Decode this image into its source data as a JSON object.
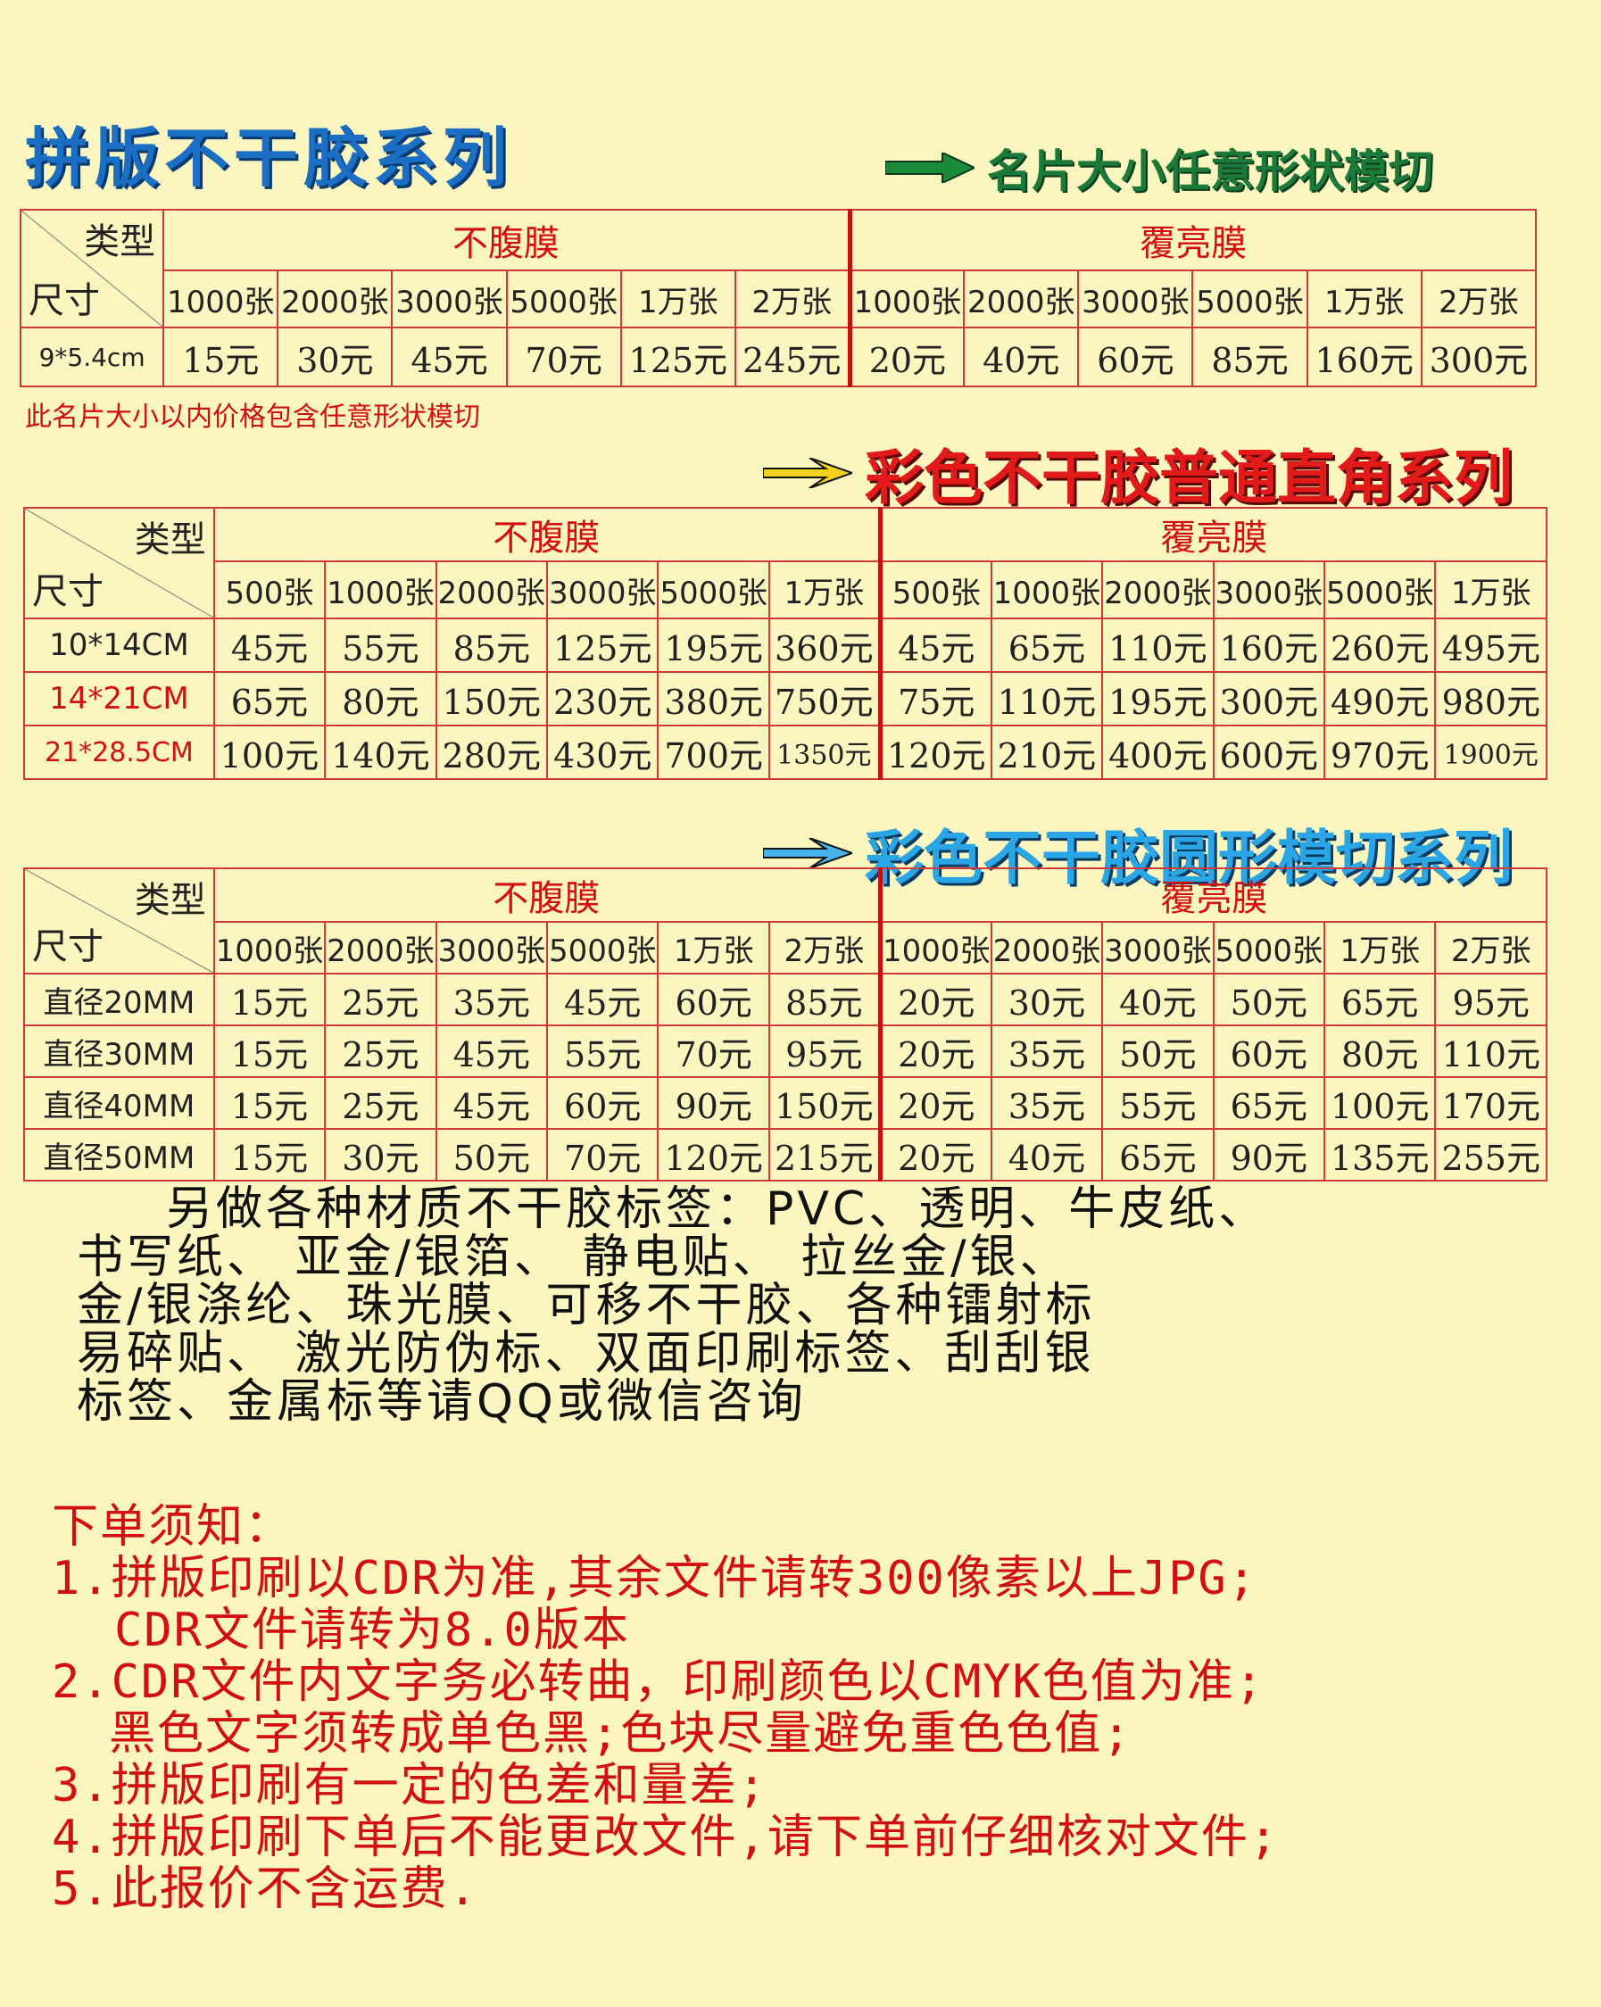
{
  "title": "拼版不干胶系列",
  "sections": {
    "s1": "名片大小任意形状模切",
    "s2": "彩色不干胶普通直角系列",
    "s3": "彩色不干胶圆形模切系列"
  },
  "colors": {
    "background": "#fbf6c0",
    "title": "#1a6fc4",
    "s1": "#1b7a3a",
    "s2": "#e21a1a",
    "s3": "#2aa6e6",
    "table_border": "#d23a3a",
    "notice": "#d21010"
  },
  "icons": {
    "s1": "arrow-right-green-icon",
    "s2": "arrow-right-yellow-icon",
    "s3": "arrow-right-blue-icon"
  },
  "corner": {
    "type": "类型",
    "size": "尺寸"
  },
  "group_a": "不腹膜",
  "group_b": "覆亮膜",
  "table1": {
    "quantities": [
      "1000张",
      "2000张",
      "3000张",
      "5000张",
      "1万张",
      "2万张"
    ],
    "rows": [
      {
        "size": "9*5.4cm",
        "a": [
          "15元",
          "30元",
          "45元",
          "70元",
          "125元",
          "245元"
        ],
        "b": [
          "20元",
          "40元",
          "60元",
          "85元",
          "160元",
          "300元"
        ]
      }
    ]
  },
  "note1": "此名片大小以内价格包含任意形状模切",
  "table2": {
    "quantities": [
      "500张",
      "1000张",
      "2000张",
      "3000张",
      "5000张",
      "1万张"
    ],
    "rows": [
      {
        "size": "10*14CM",
        "a": [
          "45元",
          "55元",
          "85元",
          "125元",
          "195元",
          "360元"
        ],
        "b": [
          "45元",
          "65元",
          "110元",
          "160元",
          "260元",
          "495元"
        ]
      },
      {
        "size": "14*21CM",
        "a": [
          "65元",
          "80元",
          "150元",
          "230元",
          "380元",
          "750元"
        ],
        "b": [
          "75元",
          "110元",
          "195元",
          "300元",
          "490元",
          "980元"
        ]
      },
      {
        "size": "21*28.5CM",
        "a": [
          "100元",
          "140元",
          "280元",
          "430元",
          "700元",
          "1350元"
        ],
        "b": [
          "120元",
          "210元",
          "400元",
          "600元",
          "970元",
          "1900元"
        ]
      }
    ]
  },
  "table3": {
    "quantities": [
      "1000张",
      "2000张",
      "3000张",
      "5000张",
      "1万张",
      "2万张"
    ],
    "rows": [
      {
        "size": "直径20MM",
        "a": [
          "15元",
          "25元",
          "35元",
          "45元",
          "60元",
          "85元"
        ],
        "b": [
          "20元",
          "30元",
          "40元",
          "50元",
          "65元",
          "95元"
        ]
      },
      {
        "size": "直径30MM",
        "a": [
          "15元",
          "25元",
          "45元",
          "55元",
          "70元",
          "95元"
        ],
        "b": [
          "20元",
          "35元",
          "50元",
          "60元",
          "80元",
          "110元"
        ]
      },
      {
        "size": "直径40MM",
        "a": [
          "15元",
          "25元",
          "45元",
          "60元",
          "90元",
          "150元"
        ],
        "b": [
          "20元",
          "35元",
          "55元",
          "65元",
          "100元",
          "170元"
        ]
      },
      {
        "size": "直径50MM",
        "a": [
          "15元",
          "30元",
          "50元",
          "70元",
          "120元",
          "215元"
        ],
        "b": [
          "20元",
          "40元",
          "65元",
          "90元",
          "135元",
          "255元"
        ]
      }
    ]
  },
  "materials": [
    "另做各种材质不干胶标签：PVC、透明、牛皮纸、",
    "书写纸、 亚金/银箔、 静电贴、 拉丝金/银、",
    "金/银涤纶、珠光膜、可移不干胶、各种镭射标",
    "易碎贴、 激光防伪标、双面印刷标签、刮刮银",
    "标签、金属标等请QQ或微信咨询"
  ],
  "notice": {
    "title": "下单须知：",
    "lines": [
      "1.拼版印刷以CDR为准,其余文件请转300像素以上JPG;",
      "CDR文件请转为8.0版本",
      "2.CDR文件内文字务必转曲，印刷颜色以CMYK色值为准;",
      "黑色文字须转成单色黑;色块尽量避免重色色值;",
      "3.拼版印刷有一定的色差和量差;",
      "4.拼版印刷下单后不能更改文件,请下单前仔细核对文件;",
      "5.此报价不含运费."
    ]
  }
}
